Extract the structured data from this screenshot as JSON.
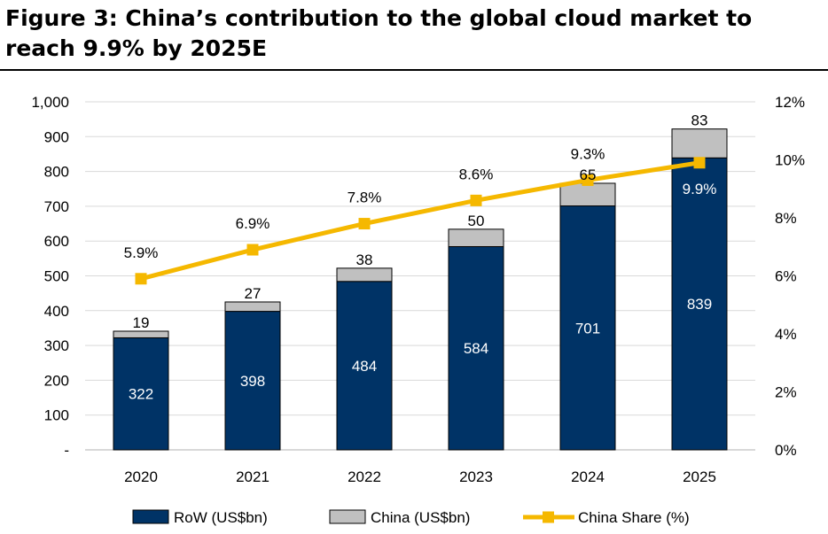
{
  "header": {
    "title": "Figure 3: China’s contribution to the global cloud market to reach 9.9% by 2025E"
  },
  "chart_data": {
    "type": "bar",
    "stacked": true,
    "categories": [
      "2020",
      "2021",
      "2022",
      "2023",
      "2024",
      "2025"
    ],
    "series": [
      {
        "name": "RoW (US$bn)",
        "type": "bar",
        "axis": "left",
        "color": "#003366",
        "values": [
          322,
          398,
          484,
          584,
          701,
          839
        ],
        "labels": [
          "322",
          "398",
          "484",
          "584",
          "701",
          "839"
        ]
      },
      {
        "name": "China (US$bn)",
        "type": "bar",
        "axis": "left",
        "color": "#c0c0c0",
        "values": [
          19,
          27,
          38,
          50,
          65,
          83
        ],
        "labels": [
          "19",
          "27",
          "38",
          "50",
          "65",
          "83"
        ]
      },
      {
        "name": "China Share (%)",
        "type": "line",
        "axis": "right",
        "color": "#f5b800",
        "values": [
          5.9,
          6.9,
          7.8,
          8.6,
          9.3,
          9.9
        ],
        "labels": [
          "5.9%",
          "6.9%",
          "7.8%",
          "8.6%",
          "9.3%",
          "9.9%"
        ]
      }
    ],
    "y_left": {
      "min": 0,
      "max": 1000,
      "step": 100,
      "tick_labels": [
        "-",
        "100",
        "200",
        "300",
        "400",
        "500",
        "600",
        "700",
        "800",
        "900",
        "1,000"
      ]
    },
    "y_right": {
      "min": 0,
      "max": 12,
      "step": 2,
      "tick_labels": [
        "0%",
        "2%",
        "4%",
        "6%",
        "8%",
        "10%",
        "12%"
      ]
    },
    "grid": true,
    "legend_position": "bottom"
  }
}
